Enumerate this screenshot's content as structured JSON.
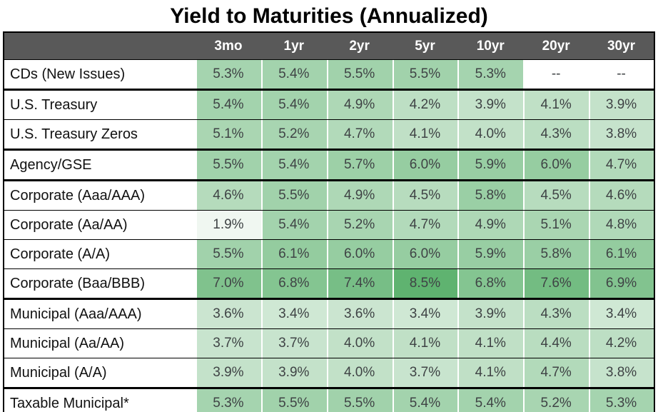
{
  "title": "Yield to Maturities (Annualized)",
  "chart_data": {
    "type": "table",
    "title": "Yield to Maturities (Annualized)",
    "columns": [
      "3mo",
      "1yr",
      "2yr",
      "5yr",
      "10yr",
      "20yr",
      "30yr"
    ],
    "rows": [
      {
        "label": "CDs (New Issues)",
        "values": [
          5.3,
          5.4,
          5.5,
          5.5,
          5.3,
          null,
          null
        ]
      },
      {
        "label": "U.S. Treasury",
        "values": [
          5.4,
          5.4,
          4.9,
          4.2,
          3.9,
          4.1,
          3.9
        ]
      },
      {
        "label": "U.S. Treasury Zeros",
        "values": [
          5.1,
          5.2,
          4.7,
          4.1,
          4.0,
          4.3,
          3.8
        ]
      },
      {
        "label": "Agency/GSE",
        "values": [
          5.5,
          5.4,
          5.7,
          6.0,
          5.9,
          6.0,
          4.7
        ]
      },
      {
        "label": "Corporate (Aaa/AAA)",
        "values": [
          4.6,
          5.5,
          4.9,
          4.5,
          5.8,
          4.5,
          4.6
        ]
      },
      {
        "label": "Corporate (Aa/AA)",
        "values": [
          1.9,
          5.4,
          5.2,
          4.7,
          4.9,
          5.1,
          4.8
        ]
      },
      {
        "label": "Corporate (A/A)",
        "values": [
          5.5,
          6.1,
          6.0,
          6.0,
          5.9,
          5.8,
          6.1
        ]
      },
      {
        "label": "Corporate (Baa/BBB)",
        "values": [
          7.0,
          6.8,
          7.4,
          8.5,
          6.8,
          7.6,
          6.9
        ]
      },
      {
        "label": "Municipal (Aaa/AAA)",
        "values": [
          3.6,
          3.4,
          3.6,
          3.4,
          3.9,
          4.3,
          3.4
        ]
      },
      {
        "label": "Municipal (Aa/AA)",
        "values": [
          3.7,
          3.7,
          4.0,
          4.1,
          4.1,
          4.4,
          4.2
        ]
      },
      {
        "label": "Municipal (A/A)",
        "values": [
          3.9,
          3.9,
          4.0,
          3.7,
          4.1,
          4.7,
          3.8
        ]
      },
      {
        "label": "Taxable Municipal*",
        "values": [
          5.3,
          5.5,
          5.5,
          5.4,
          5.4,
          5.2,
          5.3
        ]
      }
    ],
    "group_breaks_after": [
      0,
      2,
      3,
      7,
      10
    ],
    "value_suffix": "%",
    "null_display": "--",
    "heatmap": {
      "min_value": 1.9,
      "max_value": 8.5,
      "min_color": "#f0f7f1",
      "max_color": "#5fb370",
      "null_color": "#ffffff"
    },
    "colors": {
      "header_bg": "#595959",
      "header_text": "#ffffff",
      "label_text": "#111111",
      "value_text": "#3f4345",
      "border": "#000000"
    },
    "legend_position": "none",
    "grid": true
  }
}
